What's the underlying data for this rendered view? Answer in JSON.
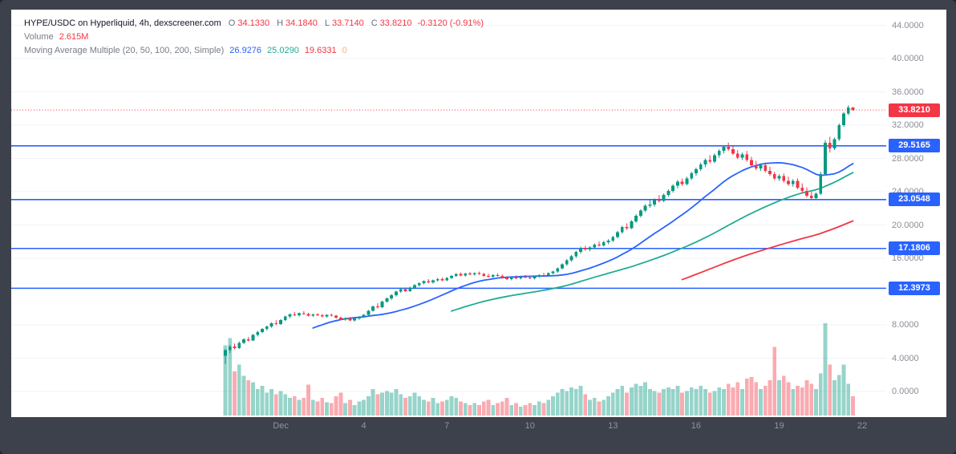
{
  "window": {
    "frame_color": "#3d414b",
    "panel_color": "#ffffff"
  },
  "legend": {
    "title": "HYPE/USDC on Hyperliquid, 4h, dexscreener.com",
    "ohlc": {
      "o_label": "O",
      "o_value": "34.1330",
      "h_label": "H",
      "h_value": "34.1840",
      "l_label": "L",
      "l_value": "33.7140",
      "c_label": "C",
      "c_value": "33.8210",
      "change": "-0.3120 (-0.91%)",
      "change_color": "#f23645"
    },
    "volume": {
      "label": "Volume",
      "value": "2.615M",
      "value_color": "#f23645"
    },
    "indicator": {
      "title": "Moving Average Multiple (20, 50, 100, 200, Simple)",
      "values": [
        {
          "text": "26.9276",
          "color": "#2962ff"
        },
        {
          "text": "25.0290",
          "color": "#22ab94"
        },
        {
          "text": "19.6331",
          "color": "#f23645"
        },
        {
          "text": "0",
          "color": "#f0b27a"
        }
      ]
    }
  },
  "price_axis": {
    "ticks": [
      "44.0000",
      "40.0000",
      "36.0000",
      "32.0000",
      "28.0000",
      "24.0000",
      "20.0000",
      "16.0000",
      "8.0000",
      "4.0000",
      "0.0000"
    ]
  },
  "levels": {
    "last_price": {
      "value": 33.821,
      "label": "33.8210",
      "color": "#f23645",
      "style": "dotted"
    },
    "support_lines": [
      {
        "value": 29.5165,
        "label": "29.5165",
        "color": "#2962ff"
      },
      {
        "value": 23.0548,
        "label": "23.0548",
        "color": "#2962ff"
      },
      {
        "value": 17.1806,
        "label": "17.1806",
        "color": "#2962ff"
      },
      {
        "value": 12.3973,
        "label": "12.3973",
        "color": "#2962ff"
      }
    ]
  },
  "time_axis": {
    "labels": [
      {
        "text": "Dec",
        "i": 12
      },
      {
        "text": "4",
        "i": 30
      },
      {
        "text": "7",
        "i": 48
      },
      {
        "text": "10",
        "i": 66
      },
      {
        "text": "13",
        "i": 84
      },
      {
        "text": "16",
        "i": 102
      },
      {
        "text": "19",
        "i": 120
      },
      {
        "text": "22",
        "i": 138
      }
    ]
  },
  "chart_data": {
    "type": "candlestick",
    "symbol": "HYPE/USDC",
    "exchange": "Hyperliquid",
    "interval": "4h",
    "source": "dexscreener.com",
    "title": "HYPE/USDC on Hyperliquid, 4h, dexscreener.com",
    "up_color": "#089981",
    "down_color": "#f23645",
    "volume_opacity": 0.42,
    "ylim": [
      -1.5,
      46
    ],
    "grid": "faint-horizontal",
    "legend_position": "top-left",
    "moving_averages": {
      "type": "sma",
      "periods": [
        20,
        50,
        100,
        200
      ],
      "colors": [
        "#2962ff",
        "#22ab94",
        "#f23645",
        "#f0b27a"
      ],
      "last_values": [
        26.9276,
        25.029,
        19.6331,
        null
      ]
    },
    "columns": [
      "open",
      "high",
      "low",
      "close",
      "volume_rel"
    ],
    "candles": [
      [
        4.3,
        5.1,
        3.3,
        4.95,
        80
      ],
      [
        4.95,
        5.6,
        4.6,
        5.4,
        88
      ],
      [
        5.4,
        5.75,
        5.05,
        5.2,
        50
      ],
      [
        5.2,
        6.0,
        5.1,
        5.85,
        58
      ],
      [
        5.85,
        6.4,
        5.7,
        6.25,
        45
      ],
      [
        6.25,
        6.55,
        6.0,
        6.1,
        40
      ],
      [
        6.1,
        6.9,
        6.05,
        6.8,
        38
      ],
      [
        6.8,
        7.3,
        6.6,
        7.15,
        30
      ],
      [
        7.15,
        7.6,
        7.0,
        7.5,
        34
      ],
      [
        7.5,
        7.9,
        7.3,
        7.8,
        26
      ],
      [
        7.8,
        8.3,
        7.65,
        8.2,
        30
      ],
      [
        8.2,
        8.55,
        7.95,
        8.1,
        24
      ],
      [
        8.1,
        8.7,
        8.0,
        8.6,
        28
      ],
      [
        8.6,
        9.1,
        8.45,
        9.0,
        24
      ],
      [
        9.0,
        9.4,
        8.8,
        9.25,
        20
      ],
      [
        9.25,
        9.55,
        9.05,
        9.15,
        22
      ],
      [
        9.15,
        9.5,
        9.0,
        9.4,
        18
      ],
      [
        9.4,
        9.65,
        9.2,
        9.3,
        20
      ],
      [
        9.3,
        9.45,
        9.0,
        9.1,
        35
      ],
      [
        9.1,
        9.35,
        8.95,
        9.25,
        18
      ],
      [
        9.25,
        9.4,
        9.05,
        9.15,
        16
      ],
      [
        9.15,
        9.3,
        8.9,
        9.0,
        20
      ],
      [
        9.0,
        9.25,
        8.85,
        9.2,
        15
      ],
      [
        9.2,
        9.35,
        9.0,
        9.1,
        14
      ],
      [
        9.1,
        9.2,
        8.75,
        8.85,
        22
      ],
      [
        8.85,
        9.0,
        8.55,
        8.65,
        26
      ],
      [
        8.65,
        8.9,
        8.5,
        8.8,
        14
      ],
      [
        8.8,
        8.95,
        8.45,
        8.55,
        18
      ],
      [
        8.55,
        8.85,
        8.4,
        8.75,
        12
      ],
      [
        8.75,
        9.05,
        8.6,
        8.95,
        16
      ],
      [
        8.95,
        9.3,
        8.85,
        9.2,
        18
      ],
      [
        9.2,
        9.8,
        9.1,
        9.7,
        22
      ],
      [
        9.7,
        10.3,
        9.6,
        10.2,
        30
      ],
      [
        10.2,
        10.6,
        9.95,
        10.1,
        24
      ],
      [
        10.1,
        10.9,
        10.0,
        10.8,
        26
      ],
      [
        10.8,
        11.3,
        10.65,
        11.2,
        28
      ],
      [
        11.2,
        11.7,
        11.0,
        11.55,
        26
      ],
      [
        11.55,
        12.1,
        11.4,
        12.0,
        30
      ],
      [
        12.0,
        12.45,
        11.85,
        12.3,
        24
      ],
      [
        12.3,
        12.5,
        11.95,
        12.05,
        20
      ],
      [
        12.05,
        12.6,
        11.95,
        12.5,
        22
      ],
      [
        12.5,
        12.9,
        12.3,
        12.75,
        26
      ],
      [
        12.75,
        13.1,
        12.6,
        13.0,
        22
      ],
      [
        13.0,
        13.35,
        12.85,
        13.25,
        18
      ],
      [
        13.25,
        13.5,
        13.0,
        13.1,
        16
      ],
      [
        13.1,
        13.45,
        12.95,
        13.35,
        20
      ],
      [
        13.35,
        13.65,
        13.2,
        13.5,
        14
      ],
      [
        13.5,
        13.7,
        13.25,
        13.35,
        16
      ],
      [
        13.35,
        13.75,
        13.25,
        13.65,
        18
      ],
      [
        13.65,
        14.0,
        13.5,
        13.9,
        22
      ],
      [
        13.9,
        14.2,
        13.75,
        14.1,
        20
      ],
      [
        14.1,
        14.3,
        13.85,
        13.95,
        16
      ],
      [
        13.95,
        14.25,
        13.8,
        14.15,
        14
      ],
      [
        14.15,
        14.35,
        13.95,
        14.05,
        12
      ],
      [
        14.05,
        14.3,
        13.9,
        14.2,
        14
      ],
      [
        14.2,
        14.4,
        14.0,
        14.1,
        12
      ],
      [
        14.1,
        14.25,
        13.8,
        13.9,
        16
      ],
      [
        13.9,
        14.15,
        13.7,
        13.8,
        18
      ],
      [
        13.8,
        14.1,
        13.65,
        14.0,
        12
      ],
      [
        14.0,
        14.2,
        13.8,
        13.9,
        14
      ],
      [
        13.9,
        14.05,
        13.55,
        13.65,
        16
      ],
      [
        13.65,
        13.85,
        13.4,
        13.5,
        20
      ],
      [
        13.5,
        13.8,
        13.35,
        13.7,
        12
      ],
      [
        13.7,
        13.95,
        13.5,
        13.6,
        14
      ],
      [
        13.6,
        13.9,
        13.45,
        13.8,
        10
      ],
      [
        13.8,
        14.0,
        13.6,
        13.7,
        12
      ],
      [
        13.7,
        13.95,
        13.5,
        13.6,
        14
      ],
      [
        13.6,
        13.9,
        13.45,
        13.8,
        12
      ],
      [
        13.8,
        14.1,
        13.65,
        14.0,
        16
      ],
      [
        14.0,
        14.25,
        13.85,
        13.95,
        14
      ],
      [
        13.95,
        14.3,
        13.85,
        14.2,
        18
      ],
      [
        14.2,
        14.5,
        14.05,
        14.4,
        22
      ],
      [
        14.4,
        14.9,
        14.25,
        14.8,
        26
      ],
      [
        14.8,
        15.4,
        14.65,
        15.3,
        30
      ],
      [
        15.3,
        15.9,
        15.1,
        15.75,
        28
      ],
      [
        15.75,
        16.4,
        15.6,
        16.25,
        32
      ],
      [
        16.25,
        16.9,
        16.05,
        16.75,
        30
      ],
      [
        16.75,
        17.4,
        16.55,
        17.25,
        34
      ],
      [
        17.25,
        17.5,
        16.9,
        17.05,
        24
      ],
      [
        17.05,
        17.45,
        16.85,
        17.3,
        18
      ],
      [
        17.3,
        17.8,
        17.1,
        17.65,
        20
      ],
      [
        17.65,
        18.0,
        17.4,
        17.55,
        16
      ],
      [
        17.55,
        18.1,
        17.4,
        17.95,
        18
      ],
      [
        17.95,
        18.3,
        17.7,
        18.1,
        22
      ],
      [
        18.1,
        18.7,
        17.95,
        18.55,
        26
      ],
      [
        18.55,
        19.3,
        18.4,
        19.15,
        30
      ],
      [
        19.15,
        19.9,
        18.95,
        19.75,
        34
      ],
      [
        19.75,
        20.2,
        19.4,
        19.6,
        26
      ],
      [
        19.6,
        20.6,
        19.5,
        20.45,
        32
      ],
      [
        20.45,
        21.3,
        20.25,
        21.1,
        36
      ],
      [
        21.1,
        21.9,
        20.9,
        21.75,
        34
      ],
      [
        21.75,
        22.5,
        21.55,
        22.3,
        38
      ],
      [
        22.3,
        23.0,
        22.05,
        22.45,
        30
      ],
      [
        22.45,
        23.2,
        22.2,
        23.0,
        28
      ],
      [
        23.0,
        23.6,
        22.7,
        22.9,
        26
      ],
      [
        22.9,
        23.8,
        22.75,
        23.6,
        30
      ],
      [
        23.6,
        24.3,
        23.4,
        24.1,
        32
      ],
      [
        24.1,
        24.9,
        23.9,
        24.7,
        30
      ],
      [
        24.7,
        25.4,
        24.4,
        25.2,
        34
      ],
      [
        25.2,
        25.6,
        24.7,
        24.9,
        26
      ],
      [
        24.9,
        25.8,
        24.75,
        25.6,
        28
      ],
      [
        25.6,
        26.4,
        25.4,
        26.2,
        32
      ],
      [
        26.2,
        26.9,
        25.9,
        26.7,
        30
      ],
      [
        26.7,
        27.5,
        26.5,
        27.3,
        34
      ],
      [
        27.3,
        28.0,
        26.95,
        27.8,
        30
      ],
      [
        27.8,
        28.4,
        27.4,
        27.6,
        26
      ],
      [
        27.6,
        28.6,
        27.45,
        28.4,
        28
      ],
      [
        28.4,
        29.1,
        28.1,
        28.9,
        32
      ],
      [
        28.9,
        29.6,
        28.6,
        29.4,
        30
      ],
      [
        29.4,
        29.9,
        28.9,
        29.1,
        36
      ],
      [
        29.1,
        29.5,
        28.4,
        28.6,
        32
      ],
      [
        28.6,
        29.0,
        27.9,
        28.1,
        38
      ],
      [
        28.1,
        28.7,
        27.8,
        28.5,
        30
      ],
      [
        28.5,
        28.9,
        27.6,
        27.8,
        42
      ],
      [
        27.8,
        28.2,
        27.0,
        27.2,
        44
      ],
      [
        27.2,
        27.7,
        26.6,
        26.8,
        38
      ],
      [
        26.8,
        27.4,
        26.5,
        27.2,
        30
      ],
      [
        27.2,
        27.5,
        26.3,
        26.5,
        34
      ],
      [
        26.5,
        27.0,
        25.9,
        26.1,
        40
      ],
      [
        26.1,
        26.4,
        25.4,
        25.6,
        78
      ],
      [
        25.6,
        26.1,
        25.3,
        25.9,
        40
      ],
      [
        25.9,
        26.2,
        25.1,
        25.3,
        45
      ],
      [
        25.3,
        25.8,
        24.7,
        24.9,
        38
      ],
      [
        24.9,
        25.5,
        24.6,
        25.3,
        30
      ],
      [
        25.3,
        25.6,
        24.3,
        24.5,
        34
      ],
      [
        24.5,
        25.0,
        23.8,
        24.1,
        32
      ],
      [
        24.1,
        24.5,
        23.3,
        23.5,
        40
      ],
      [
        23.5,
        24.0,
        23.05,
        23.25,
        36
      ],
      [
        23.25,
        23.9,
        23.05,
        23.75,
        30
      ],
      [
        23.75,
        26.4,
        23.6,
        26.1,
        48
      ],
      [
        26.1,
        30.2,
        25.95,
        29.9,
        105
      ],
      [
        29.9,
        30.6,
        28.7,
        29.2,
        58
      ],
      [
        29.2,
        30.5,
        29.0,
        30.3,
        40
      ],
      [
        30.3,
        32.2,
        30.1,
        32.0,
        46
      ],
      [
        32.0,
        33.6,
        31.8,
        33.4,
        58
      ],
      [
        33.4,
        34.4,
        33.2,
        34.13,
        36
      ],
      [
        34.133,
        34.184,
        33.714,
        33.821,
        22
      ]
    ]
  }
}
